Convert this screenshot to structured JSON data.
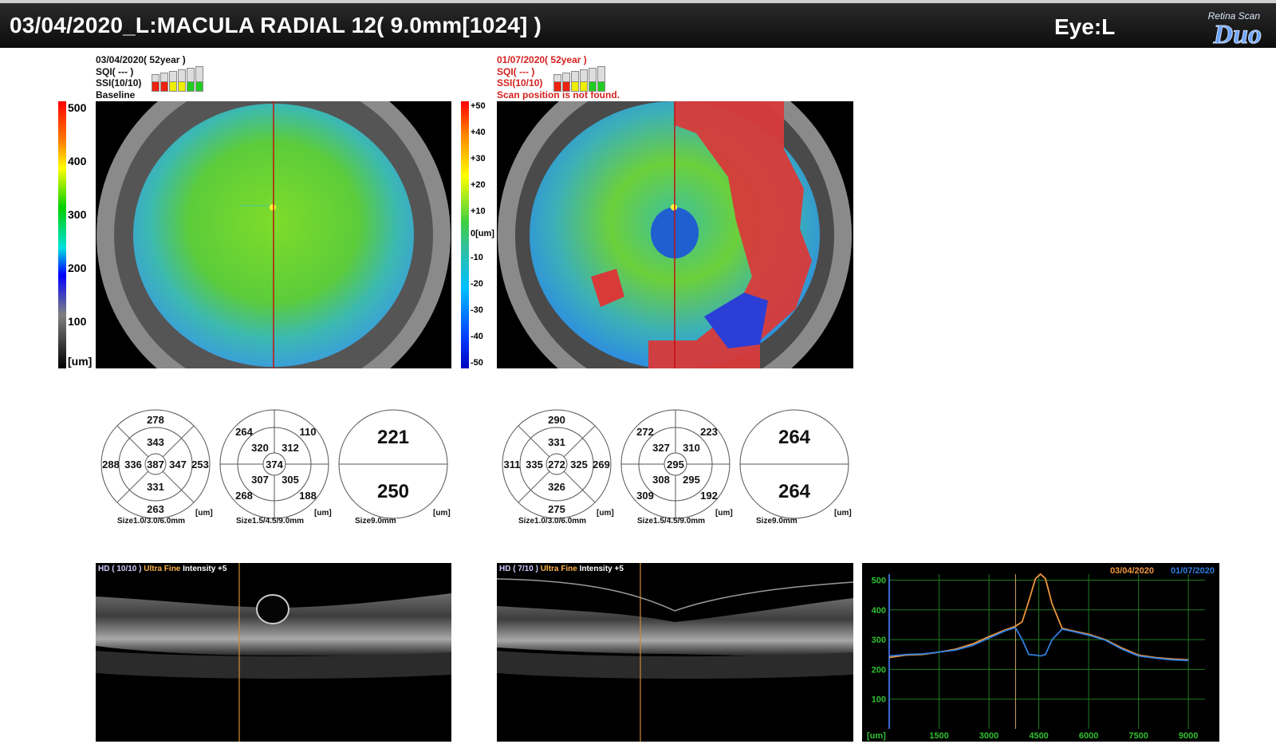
{
  "header": {
    "title": "03/04/2020_L:MACULA RADIAL 12( 9.0mm[1024] )",
    "eye": "Eye:L",
    "logo_small": "Retina Scan",
    "logo_big": "Duo"
  },
  "left_info": {
    "date": "03/04/2020( 52year )",
    "sqi": "SQI( --- )",
    "ssi": "SSI(10/10)",
    "note": "Baseline"
  },
  "right_info": {
    "date": "01/07/2020( 52year )",
    "sqi": "SQI( --- )",
    "ssi": "SSI(10/10)",
    "note": "Scan position is not found."
  },
  "thickness_scale": {
    "labels": [
      "500",
      "400",
      "300",
      "200",
      "100",
      "[um]"
    ]
  },
  "diff_scale": {
    "labels": [
      "+50",
      "+40",
      "+30",
      "+20",
      "+10",
      "0[um]",
      "-10",
      "-20",
      "-30",
      "-40",
      "-50"
    ]
  },
  "grids": [
    {
      "caption": "Size1.0/3.0/6.0mm",
      "unit": "[um]",
      "center": "387",
      "inner": {
        "top": "343",
        "left": "336",
        "right": "347",
        "bottom": "331"
      },
      "outer": {
        "top": "278",
        "left": "288",
        "right": "253",
        "bottom": "263"
      }
    },
    {
      "caption": "Size1.5/4.5/9.0mm",
      "unit": "[um]",
      "center": "374",
      "inner": {
        "tl": "320",
        "tr": "312",
        "bl": "307",
        "br": "305"
      },
      "outer": {
        "tl": "264",
        "tr": "110",
        "bl": "268",
        "br": "188"
      }
    },
    {
      "caption": "Size9.0mm",
      "unit": "[um]",
      "upper": "221",
      "lower": "250"
    },
    {
      "caption": "Size1.0/3.0/6.0mm",
      "unit": "[um]",
      "center": "272",
      "inner": {
        "top": "331",
        "left": "335",
        "right": "325",
        "bottom": "326"
      },
      "outer": {
        "top": "290",
        "left": "311",
        "right": "269",
        "bottom": "275"
      }
    },
    {
      "caption": "Size1.5/4.5/9.0mm",
      "unit": "[um]",
      "center": "295",
      "inner": {
        "tl": "327",
        "tr": "310",
        "bl": "308",
        "br": "295"
      },
      "outer": {
        "tl": "272",
        "tr": "223",
        "bl": "309",
        "br": "192"
      }
    },
    {
      "caption": "Size9.0mm",
      "unit": "[um]",
      "upper": "264",
      "lower": "264"
    }
  ],
  "oct_left": {
    "hd": "HD ( 10/10 )",
    "mode": "Ultra Fine",
    "intensity": "Intensity +5"
  },
  "oct_right": {
    "hd": "HD ( 7/10 )",
    "mode": "Ultra Fine",
    "intensity": "Intensity +5"
  },
  "colors": {
    "orange": "#f0963c",
    "blue": "#2f7ee0",
    "red": "#d62020",
    "chart_bg": "#000000",
    "grid": "#1f7a1f"
  },
  "chart_data": {
    "type": "line",
    "legend": [
      "03/04/2020",
      "01/07/2020"
    ],
    "xlabel": "[um]",
    "xticks": [
      1500,
      3000,
      4500,
      6000,
      7500,
      9000
    ],
    "yticks": [
      100,
      200,
      300,
      400,
      500
    ],
    "xlim": [
      0,
      9500
    ],
    "ylim": [
      0,
      520
    ],
    "series": [
      {
        "name": "03/04/2020",
        "color": "#f0963c",
        "x": [
          0,
          500,
          1000,
          1500,
          2000,
          2500,
          3000,
          3500,
          3800,
          4000,
          4200,
          4400,
          4550,
          4700,
          4900,
          5200,
          5500,
          6000,
          6500,
          7000,
          7500,
          8000,
          8500,
          9000
        ],
        "y": [
          240,
          248,
          250,
          258,
          268,
          285,
          310,
          333,
          345,
          360,
          430,
          505,
          520,
          505,
          420,
          338,
          330,
          318,
          300,
          272,
          248,
          240,
          235,
          232
        ]
      },
      {
        "name": "01/07/2020",
        "color": "#2f7ee0",
        "x": [
          0,
          500,
          1000,
          1500,
          2000,
          2500,
          3000,
          3500,
          3800,
          4000,
          4200,
          4400,
          4550,
          4700,
          4900,
          5200,
          5500,
          6000,
          6500,
          7000,
          7500,
          8000,
          8500,
          9000
        ],
        "y": [
          245,
          250,
          252,
          258,
          265,
          280,
          305,
          330,
          340,
          300,
          250,
          248,
          245,
          250,
          300,
          335,
          328,
          315,
          298,
          268,
          245,
          238,
          232,
          230
        ]
      }
    ]
  }
}
